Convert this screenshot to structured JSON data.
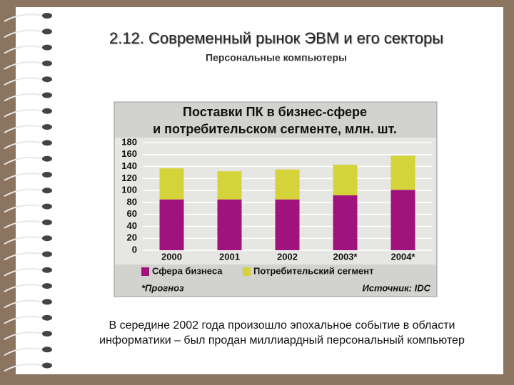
{
  "slide": {
    "title": "2.12. Современный рынок ЭВМ и его секторы",
    "subtitle": "Персональные компьютеры",
    "caption": "В середине 2002 года произошло эпохальное событие в области информатики – был продан миллиардный персональный компьютер"
  },
  "chart_data": {
    "type": "bar",
    "stacked": true,
    "title_lines": [
      "Поставки ПК в бизнес-сфере",
      "и потребительском сегменте, млн. шт."
    ],
    "categories": [
      "2000",
      "2001",
      "2002",
      "2003*",
      "2004*"
    ],
    "series": [
      {
        "name": "Сфера бизнеса",
        "color": "#a0137c",
        "values": [
          85,
          85,
          85,
          92,
          101
        ]
      },
      {
        "name": "Потребительский сегмент",
        "color": "#d4d43a",
        "values": [
          52,
          47,
          50,
          51,
          57
        ]
      }
    ],
    "ylim": [
      0,
      180
    ],
    "yticks": [
      0,
      20,
      40,
      60,
      80,
      100,
      120,
      140,
      160,
      180
    ],
    "grid": true,
    "footnote": "*Прогноз",
    "source": "Источник: IDC"
  }
}
